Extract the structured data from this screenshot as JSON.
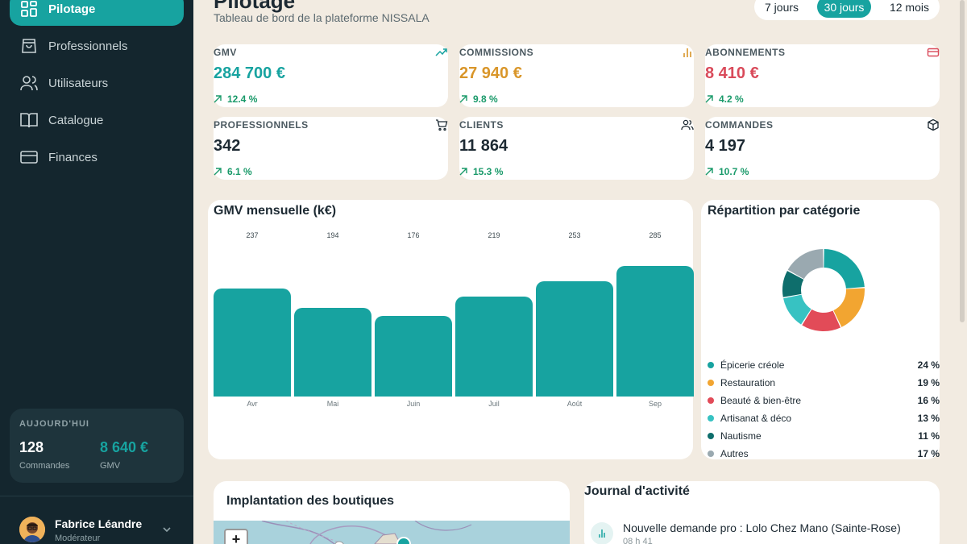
{
  "sidebar": {
    "items": [
      {
        "label": "Pilotage",
        "icon": "grid-icon"
      },
      {
        "label": "Professionnels",
        "icon": "bag-icon"
      },
      {
        "label": "Utilisateurs",
        "icon": "users-icon"
      },
      {
        "label": "Catalogue",
        "icon": "book-icon"
      },
      {
        "label": "Finances",
        "icon": "card-icon"
      }
    ],
    "today": {
      "title": "AUJOURD'HUI",
      "orders_value": "128",
      "orders_label": "Commandes",
      "gmv_value": "8 640 €",
      "gmv_label": "GMV"
    },
    "user": {
      "name": "Fabrice Léandre",
      "role": "Modérateur"
    }
  },
  "header": {
    "title": "Pilotage",
    "subtitle": "Tableau de bord de la plateforme NISSALA",
    "ranges": [
      "7 jours",
      "30 jours",
      "12 mois"
    ],
    "active_range": "30 jours"
  },
  "kpis": [
    {
      "label": "GMV",
      "value": "284 700 €",
      "delta": "12.4 %",
      "color": "#17a3a0",
      "icon": "trend-up-icon"
    },
    {
      "label": "COMMISSIONS",
      "value": "27 940 €",
      "delta": "9.8 %",
      "color": "#d9962a",
      "icon": "bar-chart-icon"
    },
    {
      "label": "ABONNEMENTS",
      "value": "8 410 €",
      "delta": "4.2 %",
      "color": "#d94a5a",
      "icon": "credit-card-icon"
    },
    {
      "label": "PROFESSIONNELS",
      "value": "342",
      "delta": "6.1 %",
      "color": "#1d2a33",
      "icon": "cart-icon"
    },
    {
      "label": "CLIENTS",
      "value": "11 864",
      "delta": "15.3 %",
      "color": "#1d2a33",
      "icon": "users-icon"
    },
    {
      "label": "COMMANDES",
      "value": "4 197",
      "delta": "10.7 %",
      "color": "#1d2a33",
      "icon": "box-icon"
    }
  ],
  "colors": {
    "accent": "#17a3a0",
    "positive": "#1a9a6a"
  },
  "bar_card": {
    "title": "GMV mensuelle (k€)"
  },
  "pie_card": {
    "title": "Répartition par catégorie"
  },
  "map_card": {
    "title": "Implantation des boutiques",
    "zoom_in": "+"
  },
  "activity": {
    "title": "Journal d'activité",
    "items": [
      {
        "text": "Nouvelle demande pro : Lolo Chez Mano (Sainte-Rose)",
        "time": "08 h 41"
      }
    ]
  },
  "chart_data": [
    {
      "type": "bar",
      "title": "GMV mensuelle (k€)",
      "categories": [
        "Avr",
        "Mai",
        "Juin",
        "Juil",
        "Août",
        "Sep"
      ],
      "values": [
        237,
        194,
        176,
        219,
        253,
        285
      ],
      "ylim": [
        0,
        300
      ]
    },
    {
      "type": "pie",
      "title": "Répartition par catégorie",
      "labels": [
        "Épicerie créole",
        "Restauration",
        "Beauté & bien-être",
        "Artisanat & déco",
        "Nautisme",
        "Autres"
      ],
      "values": [
        24,
        19,
        16,
        13,
        11,
        17
      ],
      "colors": [
        "#17a3a0",
        "#f2a531",
        "#e24b58",
        "#37c2c2",
        "#0e6e6c",
        "#9aa9b0"
      ]
    }
  ]
}
